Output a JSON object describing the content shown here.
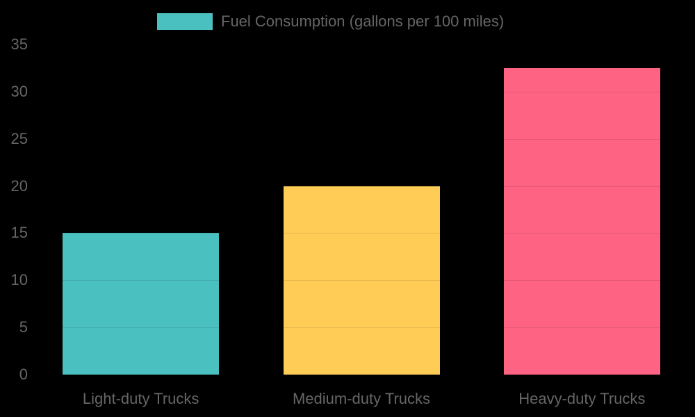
{
  "chart_data": {
    "type": "bar",
    "title": "",
    "categories": [
      "Light-duty Trucks",
      "Medium-duty Trucks",
      "Heavy-duty Trucks"
    ],
    "series": [
      {
        "name": "Fuel Consumption (gallons per 100 miles)",
        "values": [
          15,
          20,
          32.5
        ],
        "colors": [
          "#4bc0c0",
          "#ffcd56",
          "#ff6384"
        ]
      }
    ],
    "xlabel": "",
    "ylabel": "",
    "ylim": [
      0,
      35
    ],
    "yticks": [
      0,
      5,
      10,
      15,
      20,
      25,
      30,
      35
    ],
    "grid": true,
    "legend_position": "top"
  },
  "legend": {
    "label": "Fuel Consumption (gallons per 100 miles)",
    "color": "#4bc0c0"
  }
}
